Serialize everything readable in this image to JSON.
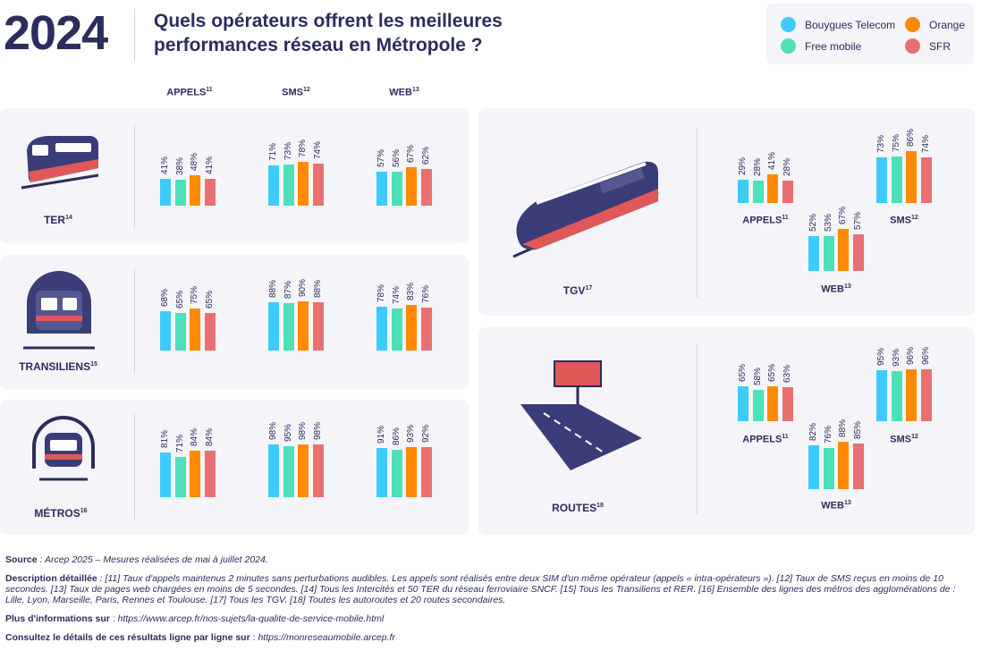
{
  "header": {
    "year": "2024",
    "title": "Quels opérateurs offrent les meilleures performances réseau en Métropole ?"
  },
  "legend": [
    {
      "name": "Bouygues Telecom",
      "color": "#3ecbfc"
    },
    {
      "name": "Orange",
      "color": "#ff8a00"
    },
    {
      "name": "Free mobile",
      "color": "#4de0bb"
    },
    {
      "name": "SFR",
      "color": "#e87070"
    }
  ],
  "column_headers": [
    {
      "label": "APPELS",
      "sup": "11"
    },
    {
      "label": "SMS",
      "sup": "12"
    },
    {
      "label": "WEB",
      "sup": "13"
    }
  ],
  "chart_data": {
    "type": "bar",
    "series_order": [
      "Bouygues Telecom",
      "Free mobile",
      "Orange",
      "SFR"
    ],
    "unit": "%",
    "panels": [
      {
        "name": "TER",
        "sup": "14",
        "appels": [
          41,
          38,
          48,
          41
        ],
        "sms": [
          71,
          73,
          78,
          74
        ],
        "web": [
          57,
          56,
          67,
          62
        ]
      },
      {
        "name": "TRANSILIENS",
        "sup": "15",
        "appels": [
          68,
          65,
          75,
          65
        ],
        "sms": [
          88,
          87,
          90,
          88
        ],
        "web": [
          78,
          74,
          83,
          76
        ]
      },
      {
        "name": "MÉTROS",
        "sup": "16",
        "appels": [
          81,
          71,
          84,
          84
        ],
        "sms": [
          98,
          95,
          98,
          98
        ],
        "web": [
          91,
          86,
          93,
          92
        ]
      },
      {
        "name": "TGV",
        "sup": "17",
        "appels": [
          29,
          28,
          41,
          28
        ],
        "sms": [
          73,
          75,
          86,
          74
        ],
        "web": [
          52,
          53,
          67,
          57
        ]
      },
      {
        "name": "ROUTES",
        "sup": "18",
        "appels": [
          65,
          58,
          65,
          63
        ],
        "sms": [
          95,
          93,
          96,
          96
        ],
        "web": [
          82,
          76,
          88,
          85
        ]
      }
    ]
  },
  "footer": {
    "source_label": "Source",
    "source_text": " : Arcep 2025 – Mesures réalisées de mai à juillet 2024.",
    "desc_label": "Description détaillée",
    "desc_text": " : [11] Taux d'appels maintenus 2 minutes sans perturbations audibles. Les appels sont réalisés entre deux SIM d'un même opérateur (appels « intra-opérateurs »). [12] Taux de SMS reçus en moins de 10 secondes. [13] Taux de pages web chargées en moins de 5 secondes. [14] Tous les Intercités et 50 TER du réseau ferroviaire SNCF. [15] Tous les Transiliens et RER. [16] Ensemble des lignes des métros des agglomérations de : Lille, Lyon, Marseille, Paris, Rennes et Toulouse. [17] Tous les TGV. [18] Toutes les autoroutes et 20 routes secondaires.",
    "info_label": "Plus d'informations sur",
    "info_link": "https://www.arcep.fr/nos-sujets/la-qualite-de-service-mobile.html",
    "detail_label": "Consultez le détails de ces résultats ligne par ligne sur",
    "detail_link": "https://monreseaumobile.arcep.fr"
  }
}
